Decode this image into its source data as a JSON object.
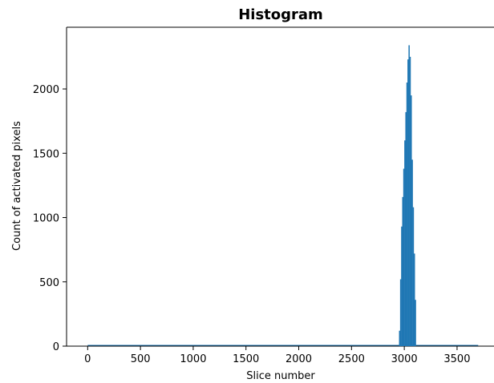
{
  "chart_data": {
    "type": "bar",
    "title": "Histogram",
    "xlabel": "Slice number",
    "ylabel": "Count of activated pixels",
    "xlim": [
      -200,
      3850
    ],
    "ylim": [
      0,
      2480
    ],
    "xticks": [
      0,
      500,
      1000,
      1500,
      2000,
      2500,
      3000,
      3500
    ],
    "yticks": [
      0,
      500,
      1000,
      1500,
      2000
    ],
    "grid": false,
    "series": [
      {
        "x": [
          2950,
          2960,
          2970,
          2980,
          2990,
          3000,
          3010,
          3020,
          3030,
          3040,
          3050,
          3060,
          3070,
          3080,
          3090,
          3100
        ],
        "values": [
          120,
          520,
          930,
          1160,
          1380,
          1600,
          1820,
          2050,
          2230,
          2340,
          2250,
          1950,
          1450,
          1080,
          720,
          360
        ],
        "bin_width": 10,
        "color": "#1f77b4"
      }
    ]
  }
}
